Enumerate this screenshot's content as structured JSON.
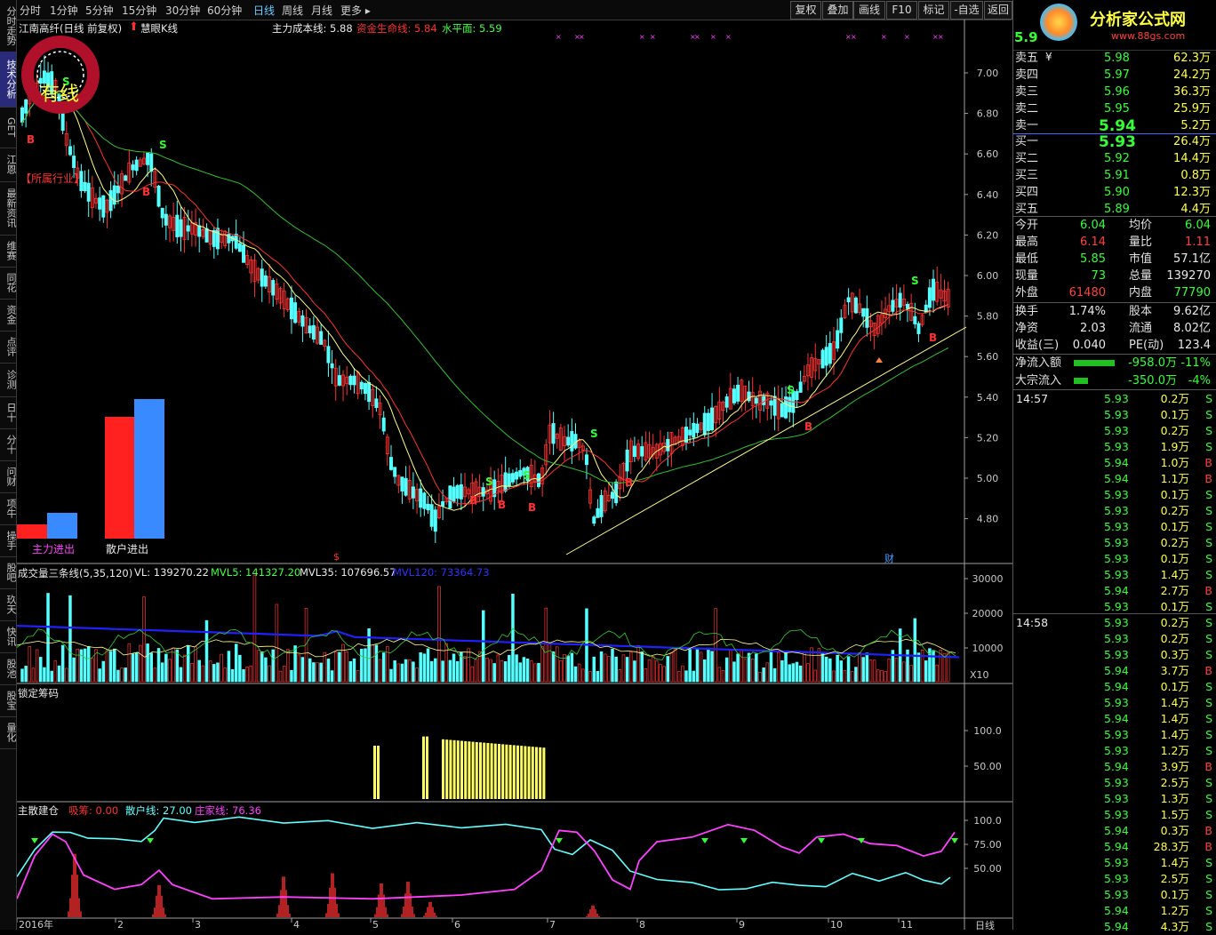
{
  "sidebar": {
    "tabs": [
      {
        "label": "分时走势",
        "top": 0,
        "height": 58
      },
      {
        "label": "技术分析",
        "top": 58,
        "height": 62,
        "active": true
      },
      {
        "label": "GET",
        "top": 120,
        "height": 46
      },
      {
        "label": "江恩",
        "top": 166,
        "height": 38
      },
      {
        "label": "最新资讯",
        "top": 204,
        "height": 60
      },
      {
        "label": "维赛",
        "top": 264,
        "height": 36
      },
      {
        "label": "同花",
        "top": 300,
        "height": 36
      },
      {
        "label": "资金",
        "top": 336,
        "height": 36
      },
      {
        "label": "点评",
        "top": 372,
        "height": 36
      },
      {
        "label": "诊测",
        "top": 408,
        "height": 38
      },
      {
        "label": "日十",
        "top": 446,
        "height": 36
      },
      {
        "label": "分十",
        "top": 482,
        "height": 36
      },
      {
        "label": "问财",
        "top": 518,
        "height": 36
      },
      {
        "label": "项牛",
        "top": 554,
        "height": 36
      },
      {
        "label": "操手",
        "top": 590,
        "height": 36
      },
      {
        "label": "股吧",
        "top": 626,
        "height": 36
      },
      {
        "label": "玖天",
        "top": 662,
        "height": 36
      },
      {
        "label": "快讯",
        "top": 698,
        "height": 36
      },
      {
        "label": "股池",
        "top": 734,
        "height": 36
      },
      {
        "label": "股宝",
        "top": 770,
        "height": 36
      },
      {
        "label": "量化",
        "top": 806,
        "height": 36
      }
    ]
  },
  "toolbar": {
    "periods": [
      "分时",
      "1分钟",
      "5分钟",
      "15分钟",
      "30分钟",
      "60分钟",
      "日线",
      "周线",
      "月线",
      "更多 ▸"
    ],
    "active_period": "日线",
    "buttons": [
      "复权",
      "叠加",
      "画线",
      "F10",
      "标记",
      "-自选",
      "返回"
    ]
  },
  "main_chart": {
    "stock_name": "江南高纤(日线 前复权)",
    "indicator_name": "慧眼K线",
    "cost_line_label": "主力成本线: 5.88",
    "capital_line_label": "资金生命线: 5.84",
    "water_level_label": "水平面: 5.59",
    "industry_label": "【所属行业】",
    "badge_text": "有线",
    "y_ticks": [
      "7.00",
      "6.80",
      "6.60",
      "6.40",
      "6.20",
      "6.00",
      "5.80",
      "5.60",
      "5.40",
      "5.20",
      "5.00",
      "4.80"
    ],
    "bar_labels": [
      "主力进出",
      "散户进出"
    ],
    "marker_cai": "财",
    "marker_dollar": "$"
  },
  "volume_panel": {
    "title": "成交量三条线(5,35,120)",
    "vl": "VL: 139270.22",
    "mvl5": "MVL5: 141327.20",
    "mvl35": "MVL35: 107696.57",
    "mvl120": "MVL120: 73364.73",
    "y_ticks": [
      "30000",
      "20000",
      "10000"
    ],
    "unit": "X10"
  },
  "chip_panel": {
    "title": "锁定筹码",
    "y_ticks": [
      "100.0",
      "50.00"
    ]
  },
  "accum_panel": {
    "title": "主散建仓",
    "absorb": "吸筹: 0.00",
    "retail": "散户线: 27.00",
    "dealer": "庄家线: 76.36",
    "y_ticks": [
      "100.0",
      "75.00",
      "50.00"
    ]
  },
  "x_axis": {
    "labels": [
      "2016年",
      "2",
      "3",
      "4",
      "5",
      "6",
      "7",
      "8",
      "9",
      "10",
      "11"
    ],
    "period_label": "日线"
  },
  "quote": {
    "logo_text": "分析家公式网",
    "logo_url": "www.88gs.com",
    "price": "5.9",
    "asks": [
      {
        "label": "卖五",
        "price": "5.98",
        "vol": "62.3万"
      },
      {
        "label": "卖四",
        "price": "5.97",
        "vol": "24.2万"
      },
      {
        "label": "卖三",
        "price": "5.96",
        "vol": "36.3万"
      },
      {
        "label": "卖二",
        "price": "5.95",
        "vol": "25.9万"
      },
      {
        "label": "卖一",
        "price": "5.94",
        "vol": "5.2万"
      }
    ],
    "bids": [
      {
        "label": "买一",
        "price": "5.93",
        "vol": "26.4万"
      },
      {
        "label": "买二",
        "price": "5.92",
        "vol": "14.4万"
      },
      {
        "label": "买三",
        "price": "5.91",
        "vol": "0.8万"
      },
      {
        "label": "买四",
        "price": "5.90",
        "vol": "12.3万"
      },
      {
        "label": "买五",
        "price": "5.89",
        "vol": "4.4万"
      }
    ],
    "stats": [
      {
        "l1": "今开",
        "v1": "6.04",
        "c1": "green",
        "l2": "均价",
        "v2": "6.04",
        "c2": "green"
      },
      {
        "l1": "最高",
        "v1": "6.14",
        "c1": "red",
        "l2": "量比",
        "v2": "1.11",
        "c2": "red"
      },
      {
        "l1": "最低",
        "v1": "5.85",
        "c1": "green",
        "l2": "市值",
        "v2": "57.1亿",
        "c2": "white"
      },
      {
        "l1": "现量",
        "v1": "73",
        "c1": "green",
        "l2": "总量",
        "v2": "139270",
        "c2": "white"
      },
      {
        "l1": "外盘",
        "v1": "61480",
        "c1": "red",
        "l2": "内盘",
        "v2": "77790",
        "c2": "green"
      }
    ],
    "stats2": [
      {
        "l1": "换手",
        "v1": "1.74%",
        "l2": "股本",
        "v2": "9.62亿"
      },
      {
        "l1": "净资",
        "v1": "2.03",
        "l2": "流通",
        "v2": "8.02亿"
      },
      {
        "l1": "收益(三)",
        "v1": "0.040",
        "l2": "PE(动)",
        "v2": "123.4"
      }
    ],
    "flows": [
      {
        "label": "净流入额",
        "value": "-958.0万",
        "pct": "-11%"
      },
      {
        "label": "大宗流入",
        "value": "-350.0万",
        "pct": "-4%"
      }
    ]
  },
  "trades": {
    "time1": "14:57",
    "time2": "14:58",
    "rows": [
      {
        "p": "5.93",
        "v": "0.2万",
        "s": "S"
      },
      {
        "p": "5.93",
        "v": "0.1万",
        "s": "S"
      },
      {
        "p": "5.93",
        "v": "0.2万",
        "s": "S"
      },
      {
        "p": "5.93",
        "v": "1.9万",
        "s": "S"
      },
      {
        "p": "5.94",
        "v": "1.0万",
        "s": "B"
      },
      {
        "p": "5.94",
        "v": "1.1万",
        "s": "B"
      },
      {
        "p": "5.93",
        "v": "0.1万",
        "s": "S"
      },
      {
        "p": "5.93",
        "v": "0.2万",
        "s": "S"
      },
      {
        "p": "5.93",
        "v": "0.1万",
        "s": "S"
      },
      {
        "p": "5.93",
        "v": "0.2万",
        "s": "S"
      },
      {
        "p": "5.93",
        "v": "0.1万",
        "s": "S"
      },
      {
        "p": "5.93",
        "v": "1.4万",
        "s": "S"
      },
      {
        "p": "5.94",
        "v": "2.7万",
        "s": "B"
      },
      {
        "p": "5.93",
        "v": "0.1万",
        "s": "S"
      },
      {
        "p": "5.93",
        "v": "0.2万",
        "s": "S"
      },
      {
        "p": "5.93",
        "v": "0.2万",
        "s": "S"
      },
      {
        "p": "5.93",
        "v": "0.3万",
        "s": "S"
      },
      {
        "p": "5.94",
        "v": "3.7万",
        "s": "B"
      },
      {
        "p": "5.94",
        "v": "0.1万",
        "s": "S"
      },
      {
        "p": "5.93",
        "v": "1.4万",
        "s": "S"
      },
      {
        "p": "5.94",
        "v": "1.4万",
        "s": "S"
      },
      {
        "p": "5.93",
        "v": "1.4万",
        "s": "S"
      },
      {
        "p": "5.93",
        "v": "1.2万",
        "s": "S"
      },
      {
        "p": "5.94",
        "v": "3.9万",
        "s": "B"
      },
      {
        "p": "5.93",
        "v": "2.5万",
        "s": "S"
      },
      {
        "p": "5.93",
        "v": "1.3万",
        "s": "S"
      },
      {
        "p": "5.93",
        "v": "1.5万",
        "s": "S"
      },
      {
        "p": "5.94",
        "v": "0.3万",
        "s": "B"
      },
      {
        "p": "5.94",
        "v": "28.3万",
        "s": "B"
      },
      {
        "p": "5.93",
        "v": "1.4万",
        "s": "S"
      },
      {
        "p": "5.93",
        "v": "2.5万",
        "s": "S"
      },
      {
        "p": "5.93",
        "v": "0.1万",
        "s": "S"
      },
      {
        "p": "5.94",
        "v": "1.2万",
        "s": "S"
      },
      {
        "p": "5.94",
        "v": "4.3万",
        "s": "S"
      }
    ]
  },
  "colors": {
    "up": "#ff3232",
    "down": "#54ffff",
    "ma1": "#ffff80",
    "ma2": "#ff3030",
    "ma3": "#30c030",
    "vol_ma": "#2020ff"
  }
}
